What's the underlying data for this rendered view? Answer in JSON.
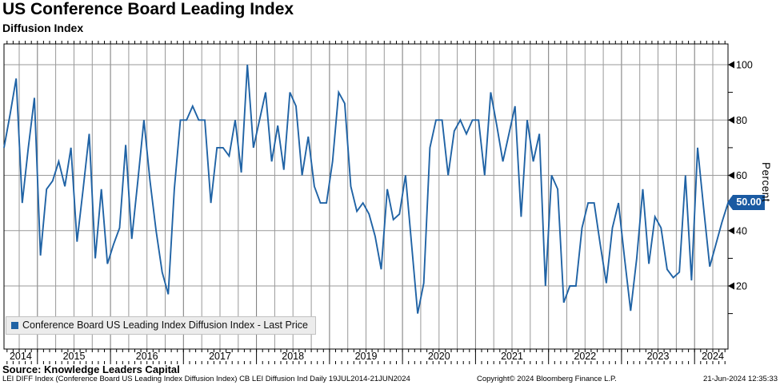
{
  "header": {
    "title": "US Conference Board Leading Index",
    "subtitle": "Diffusion Index"
  },
  "chart_data": {
    "type": "line",
    "title": "US Conference Board Leading Index",
    "subtitle": "Diffusion Index",
    "ylabel": "Percent",
    "frequency": "monthly",
    "x_start": "2014-07",
    "x_end": "2024-06",
    "x_year_labels": [
      "2014",
      "2015",
      "2016",
      "2017",
      "2018",
      "2019",
      "2020",
      "2021",
      "2022",
      "2023",
      "2024"
    ],
    "y_ticks": [
      20,
      40,
      60,
      80,
      100
    ],
    "y_minor_step": 10,
    "ylim": [
      -3,
      107
    ],
    "grid": {
      "vertical": "quarterly",
      "horizontal": "every-20"
    },
    "legend_position": "bottom-left",
    "series": [
      {
        "name": "Conference Board US Leading Index Diffusion Index - Last Price",
        "color": "#2063a5",
        "last_price": "50.00",
        "values": [
          70,
          82,
          95,
          50,
          70,
          88,
          31,
          55,
          58,
          65,
          56,
          70,
          36,
          55,
          75,
          30,
          55,
          28,
          35,
          41,
          71,
          37,
          58,
          80,
          58,
          40,
          25,
          17,
          55,
          80,
          80,
          85,
          80,
          80,
          50,
          70,
          70,
          67,
          80,
          61,
          100,
          70,
          80,
          90,
          65,
          78,
          62,
          90,
          85,
          60,
          74,
          56,
          50,
          50,
          65,
          90,
          86,
          56,
          47,
          50,
          46,
          38,
          26,
          55,
          44,
          46,
          60,
          35,
          10,
          21,
          70,
          80,
          80,
          60,
          76,
          80,
          75,
          80,
          80,
          60,
          90,
          78,
          65,
          75,
          85,
          45,
          80,
          65,
          75,
          20,
          60,
          55,
          14,
          20,
          20,
          41,
          50,
          50,
          35,
          21,
          41,
          50,
          30,
          11,
          30,
          55,
          28,
          45,
          41,
          26,
          23,
          25,
          60,
          22,
          70,
          48,
          27,
          35,
          43,
          50
        ]
      }
    ]
  },
  "legend": {
    "label": "Conference Board US Leading Index Diffusion Index - Last Price"
  },
  "y_axis": {
    "label": "Percent",
    "badge": "50.00"
  },
  "footer": {
    "source": "Source: Knowledge Leaders Capital",
    "description": "LEI DIFF Index (Conference Board US Leading Index Diffusion Index) CB LEI Diffusion Ind  Daily 19JUL2014-21JUN2024",
    "copyright": "Copyright© 2024 Bloomberg Finance L.P.",
    "timestamp": "21-Jun-2024 12:35:33"
  },
  "colors": {
    "line": "#2063a5",
    "badge_bg": "#1a5aa2",
    "grid_quarter": "#999999",
    "grid_year": "#777777",
    "frame": "#000000",
    "legend_bg": "#ececec"
  }
}
